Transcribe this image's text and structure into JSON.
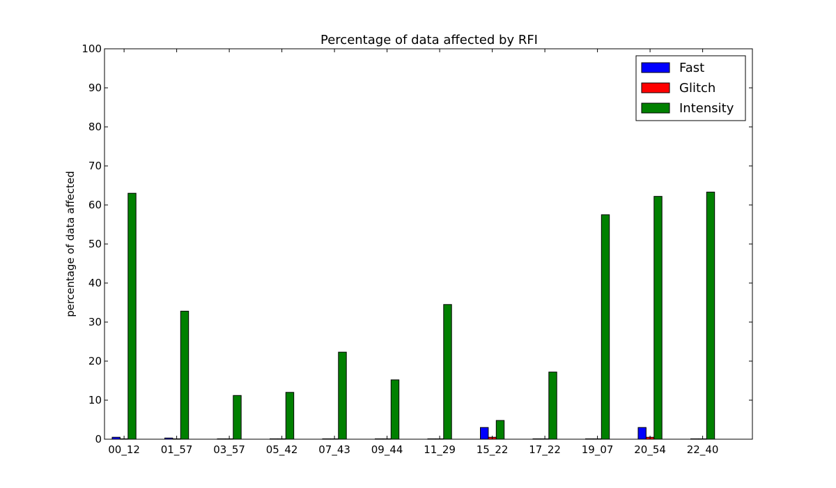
{
  "chart_data": {
    "type": "bar",
    "title": "Percentage of data affected by RFI",
    "xlabel": "",
    "ylabel": "percentage of data affected",
    "ylim": [
      0,
      100
    ],
    "yticks": [
      0,
      10,
      20,
      30,
      40,
      50,
      60,
      70,
      80,
      90,
      100
    ],
    "categories": [
      "00_12",
      "01_57",
      "03_57",
      "05_42",
      "07_43",
      "09_44",
      "11_29",
      "15_22",
      "17_22",
      "19_07",
      "20_54",
      "22_40"
    ],
    "series": [
      {
        "name": "Fast",
        "color": "#0000ff",
        "values": [
          0.5,
          0.3,
          0.1,
          0.1,
          0.1,
          0.1,
          0.1,
          3.0,
          0.1,
          0.1,
          3.0,
          0.1
        ]
      },
      {
        "name": "Glitch",
        "color": "#ff0000",
        "values": [
          0.1,
          0.1,
          0.1,
          0.1,
          0.1,
          0.1,
          0.1,
          0.5,
          0.1,
          0.1,
          0.5,
          0.1
        ]
      },
      {
        "name": "Intensity",
        "color": "#008000",
        "values": [
          63.0,
          32.8,
          11.2,
          12.0,
          22.3,
          15.2,
          34.5,
          4.8,
          17.2,
          57.5,
          62.2,
          63.3
        ]
      }
    ],
    "grid": false,
    "legend_position": "top-right"
  }
}
